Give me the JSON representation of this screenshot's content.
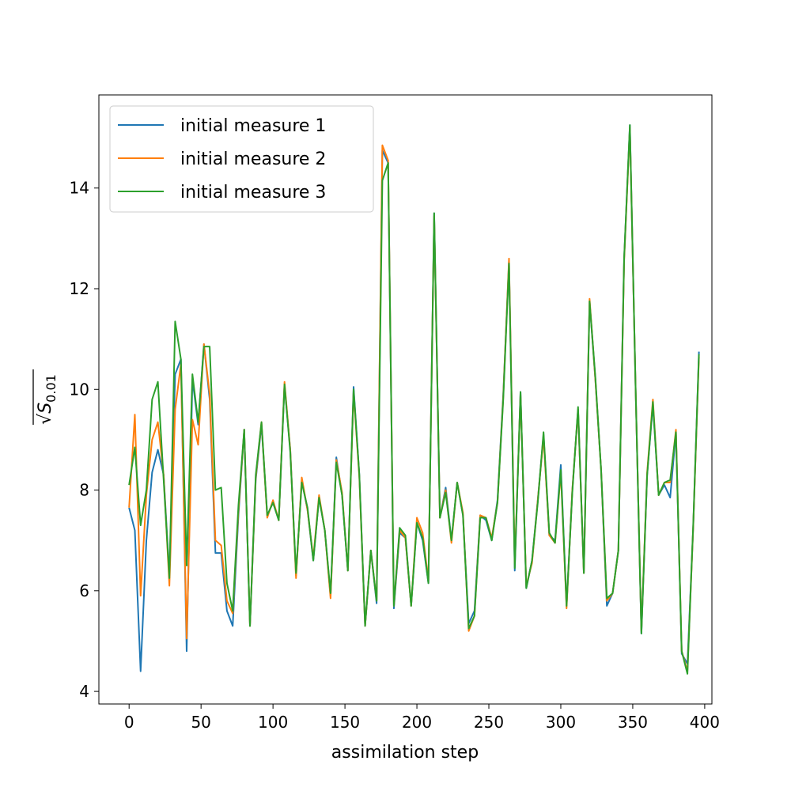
{
  "chart_data": {
    "type": "line",
    "title": "",
    "xlabel": "assimilation step",
    "ylabel_text": "S",
    "ylabel_subscript": "0.01",
    "ylabel_prefix": "√",
    "xlim": [
      -21,
      405
    ],
    "ylim": [
      3.75,
      15.85
    ],
    "xticks": [
      0,
      50,
      100,
      150,
      200,
      250,
      300,
      350,
      400
    ],
    "yticks": [
      4,
      6,
      8,
      10,
      12,
      14
    ],
    "legend_position": "top-left",
    "grid": false,
    "x": [
      0,
      4,
      8,
      12,
      16,
      20,
      24,
      28,
      32,
      36,
      40,
      44,
      48,
      52,
      56,
      60,
      64,
      68,
      72,
      76,
      80,
      84,
      88,
      92,
      96,
      100,
      104,
      108,
      112,
      116,
      120,
      124,
      128,
      132,
      136,
      140,
      144,
      148,
      152,
      156,
      160,
      164,
      168,
      172,
      176,
      180,
      184,
      188,
      192,
      196,
      200,
      204,
      208,
      212,
      216,
      220,
      224,
      228,
      232,
      236,
      240,
      244,
      248,
      252,
      256,
      260,
      264,
      268,
      272,
      276,
      280,
      284,
      288,
      292,
      296,
      300,
      304,
      308,
      312,
      316,
      320,
      324,
      328,
      332,
      336,
      340,
      344,
      348,
      352,
      356,
      360,
      364,
      368,
      372,
      376,
      380,
      384,
      388,
      392,
      396
    ],
    "series": [
      {
        "name": "initial measure 1",
        "color": "#1f77b4",
        "values": [
          7.65,
          7.2,
          4.4,
          7.0,
          8.35,
          8.8,
          8.3,
          6.3,
          10.3,
          10.6,
          4.8,
          10.2,
          9.3,
          10.9,
          9.8,
          6.75,
          6.75,
          5.6,
          5.3,
          7.5,
          9.2,
          5.3,
          8.2,
          9.3,
          7.5,
          7.75,
          7.4,
          10.1,
          8.8,
          6.3,
          8.2,
          7.6,
          6.6,
          7.85,
          7.2,
          5.9,
          8.65,
          7.9,
          6.4,
          10.05,
          8.3,
          5.3,
          6.8,
          5.75,
          14.75,
          14.5,
          5.65,
          7.15,
          7.05,
          5.7,
          7.35,
          7.0,
          6.15,
          13.5,
          7.45,
          8.05,
          7.0,
          8.15,
          7.5,
          5.35,
          5.6,
          7.5,
          7.4,
          7.0,
          7.8,
          9.9,
          12.55,
          6.4,
          9.95,
          6.05,
          6.6,
          7.8,
          9.1,
          7.1,
          7.0,
          8.5,
          5.7,
          8.0,
          9.6,
          6.35,
          11.75,
          10.2,
          8.4,
          5.7,
          5.95,
          6.8,
          12.6,
          15.25,
          10.0,
          5.15,
          8.3,
          9.7,
          7.9,
          8.1,
          7.85,
          9.15,
          4.75,
          4.55,
          7.25,
          10.75
        ]
      },
      {
        "name": "initial measure 2",
        "color": "#ff7f0e",
        "values": [
          7.65,
          9.5,
          5.9,
          7.9,
          9.0,
          9.35,
          8.3,
          6.1,
          9.6,
          10.5,
          5.05,
          9.4,
          8.9,
          10.9,
          9.9,
          7.0,
          6.9,
          5.8,
          5.55,
          7.6,
          9.2,
          5.3,
          8.25,
          9.35,
          7.45,
          7.8,
          7.4,
          10.15,
          8.8,
          6.25,
          8.25,
          7.6,
          6.65,
          7.9,
          7.2,
          5.85,
          8.6,
          7.95,
          6.4,
          9.95,
          8.25,
          5.3,
          6.8,
          5.8,
          14.85,
          14.55,
          5.7,
          7.2,
          7.05,
          5.7,
          7.45,
          7.15,
          6.2,
          13.45,
          7.45,
          8.0,
          6.95,
          8.15,
          7.55,
          5.2,
          5.5,
          7.5,
          7.45,
          7.05,
          7.75,
          9.85,
          12.6,
          6.55,
          9.9,
          6.1,
          6.55,
          7.8,
          9.05,
          7.1,
          6.95,
          8.35,
          5.65,
          8.0,
          9.6,
          6.35,
          11.8,
          10.2,
          8.4,
          5.8,
          5.95,
          6.8,
          12.55,
          15.2,
          10.0,
          5.2,
          8.35,
          9.8,
          7.9,
          8.15,
          8.15,
          9.2,
          4.8,
          4.4,
          7.25,
          10.65
        ]
      },
      {
        "name": "initial measure 3",
        "color": "#2ca02c",
        "values": [
          8.1,
          8.85,
          7.3,
          8.0,
          9.8,
          10.15,
          8.2,
          6.25,
          11.35,
          10.6,
          6.5,
          10.3,
          9.35,
          10.85,
          10.85,
          8.0,
          8.05,
          6.15,
          5.6,
          7.7,
          9.2,
          5.3,
          8.3,
          9.35,
          7.5,
          7.75,
          7.4,
          10.1,
          8.75,
          6.35,
          8.15,
          7.65,
          6.6,
          7.85,
          7.2,
          5.95,
          8.55,
          7.9,
          6.4,
          10.0,
          8.3,
          5.3,
          6.8,
          5.8,
          14.15,
          14.5,
          5.7,
          7.25,
          7.1,
          5.7,
          7.35,
          7.05,
          6.15,
          13.5,
          7.45,
          7.95,
          7.0,
          8.15,
          7.5,
          5.25,
          5.5,
          7.45,
          7.45,
          7.0,
          7.75,
          9.8,
          12.5,
          6.45,
          9.95,
          6.05,
          6.6,
          7.75,
          9.15,
          7.15,
          6.95,
          8.4,
          5.7,
          7.95,
          9.65,
          6.35,
          11.75,
          10.25,
          8.4,
          5.85,
          5.95,
          6.8,
          12.6,
          15.25,
          10.0,
          5.15,
          8.3,
          9.75,
          7.9,
          8.15,
          8.2,
          9.15,
          4.8,
          4.35,
          7.3,
          10.7
        ]
      }
    ]
  }
}
